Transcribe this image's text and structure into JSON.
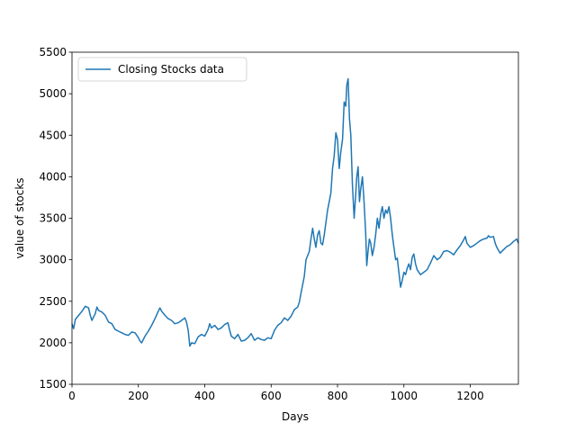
{
  "chart_data": {
    "type": "line",
    "title": "",
    "xlabel": "Days",
    "ylabel": "value of stocks",
    "xlim": [
      0,
      1345
    ],
    "ylim": [
      1500,
      5500
    ],
    "xticks": [
      0,
      200,
      400,
      600,
      800,
      1000,
      1200
    ],
    "yticks": [
      1500,
      2000,
      2500,
      3000,
      3500,
      4000,
      4500,
      5000,
      5500
    ],
    "grid": false,
    "legend_position": "top-left",
    "series": [
      {
        "name": "Closing Stocks data",
        "color": "#1f77b4",
        "points": [
          [
            0,
            2230
          ],
          [
            5,
            2170
          ],
          [
            10,
            2280
          ],
          [
            20,
            2330
          ],
          [
            30,
            2380
          ],
          [
            40,
            2440
          ],
          [
            50,
            2420
          ],
          [
            55,
            2330
          ],
          [
            60,
            2270
          ],
          [
            70,
            2350
          ],
          [
            75,
            2430
          ],
          [
            80,
            2390
          ],
          [
            90,
            2370
          ],
          [
            100,
            2330
          ],
          [
            110,
            2250
          ],
          [
            120,
            2230
          ],
          [
            130,
            2160
          ],
          [
            140,
            2140
          ],
          [
            150,
            2120
          ],
          [
            160,
            2100
          ],
          [
            170,
            2090
          ],
          [
            180,
            2130
          ],
          [
            190,
            2120
          ],
          [
            200,
            2060
          ],
          [
            205,
            2020
          ],
          [
            210,
            2000
          ],
          [
            220,
            2080
          ],
          [
            230,
            2140
          ],
          [
            240,
            2210
          ],
          [
            250,
            2290
          ],
          [
            260,
            2380
          ],
          [
            265,
            2420
          ],
          [
            270,
            2380
          ],
          [
            280,
            2330
          ],
          [
            290,
            2290
          ],
          [
            300,
            2270
          ],
          [
            310,
            2230
          ],
          [
            320,
            2240
          ],
          [
            330,
            2270
          ],
          [
            340,
            2300
          ],
          [
            345,
            2250
          ],
          [
            350,
            2150
          ],
          [
            355,
            1960
          ],
          [
            360,
            2000
          ],
          [
            370,
            1990
          ],
          [
            380,
            2070
          ],
          [
            390,
            2100
          ],
          [
            400,
            2080
          ],
          [
            410,
            2160
          ],
          [
            415,
            2230
          ],
          [
            420,
            2180
          ],
          [
            430,
            2210
          ],
          [
            440,
            2160
          ],
          [
            450,
            2180
          ],
          [
            460,
            2220
          ],
          [
            470,
            2240
          ],
          [
            475,
            2150
          ],
          [
            480,
            2080
          ],
          [
            490,
            2050
          ],
          [
            500,
            2100
          ],
          [
            510,
            2020
          ],
          [
            520,
            2030
          ],
          [
            530,
            2060
          ],
          [
            540,
            2110
          ],
          [
            550,
            2030
          ],
          [
            560,
            2060
          ],
          [
            570,
            2040
          ],
          [
            580,
            2030
          ],
          [
            590,
            2060
          ],
          [
            600,
            2050
          ],
          [
            610,
            2150
          ],
          [
            620,
            2210
          ],
          [
            630,
            2240
          ],
          [
            640,
            2300
          ],
          [
            650,
            2270
          ],
          [
            660,
            2320
          ],
          [
            670,
            2400
          ],
          [
            680,
            2430
          ],
          [
            685,
            2490
          ],
          [
            690,
            2600
          ],
          [
            700,
            2800
          ],
          [
            705,
            3000
          ],
          [
            710,
            3050
          ],
          [
            715,
            3100
          ],
          [
            720,
            3250
          ],
          [
            725,
            3380
          ],
          [
            730,
            3250
          ],
          [
            735,
            3150
          ],
          [
            740,
            3300
          ],
          [
            745,
            3350
          ],
          [
            750,
            3200
          ],
          [
            755,
            3180
          ],
          [
            760,
            3300
          ],
          [
            770,
            3600
          ],
          [
            780,
            3800
          ],
          [
            785,
            4100
          ],
          [
            790,
            4250
          ],
          [
            795,
            4530
          ],
          [
            800,
            4450
          ],
          [
            805,
            4100
          ],
          [
            810,
            4300
          ],
          [
            815,
            4450
          ],
          [
            820,
            4900
          ],
          [
            825,
            4850
          ],
          [
            828,
            5100
          ],
          [
            832,
            5180
          ],
          [
            836,
            4700
          ],
          [
            840,
            4500
          ],
          [
            845,
            3900
          ],
          [
            850,
            3500
          ],
          [
            855,
            3800
          ],
          [
            858,
            4000
          ],
          [
            862,
            4120
          ],
          [
            866,
            3700
          ],
          [
            870,
            3850
          ],
          [
            875,
            4000
          ],
          [
            880,
            3700
          ],
          [
            885,
            3300
          ],
          [
            888,
            2930
          ],
          [
            892,
            3100
          ],
          [
            896,
            3250
          ],
          [
            900,
            3200
          ],
          [
            905,
            3050
          ],
          [
            910,
            3150
          ],
          [
            915,
            3300
          ],
          [
            920,
            3500
          ],
          [
            925,
            3380
          ],
          [
            930,
            3550
          ],
          [
            935,
            3640
          ],
          [
            940,
            3500
          ],
          [
            945,
            3600
          ],
          [
            950,
            3560
          ],
          [
            955,
            3640
          ],
          [
            960,
            3500
          ],
          [
            965,
            3300
          ],
          [
            970,
            3150
          ],
          [
            975,
            3000
          ],
          [
            980,
            3020
          ],
          [
            985,
            2850
          ],
          [
            990,
            2670
          ],
          [
            995,
            2750
          ],
          [
            1000,
            2850
          ],
          [
            1005,
            2820
          ],
          [
            1010,
            2900
          ],
          [
            1015,
            2950
          ],
          [
            1020,
            2880
          ],
          [
            1025,
            3030
          ],
          [
            1030,
            3070
          ],
          [
            1035,
            2950
          ],
          [
            1040,
            2880
          ],
          [
            1050,
            2820
          ],
          [
            1060,
            2850
          ],
          [
            1070,
            2880
          ],
          [
            1080,
            2960
          ],
          [
            1090,
            3050
          ],
          [
            1100,
            3000
          ],
          [
            1110,
            3030
          ],
          [
            1120,
            3100
          ],
          [
            1130,
            3110
          ],
          [
            1140,
            3090
          ],
          [
            1150,
            3060
          ],
          [
            1160,
            3120
          ],
          [
            1170,
            3170
          ],
          [
            1180,
            3240
          ],
          [
            1185,
            3280
          ],
          [
            1190,
            3200
          ],
          [
            1200,
            3150
          ],
          [
            1210,
            3170
          ],
          [
            1220,
            3200
          ],
          [
            1230,
            3230
          ],
          [
            1240,
            3250
          ],
          [
            1250,
            3260
          ],
          [
            1255,
            3290
          ],
          [
            1260,
            3270
          ],
          [
            1270,
            3280
          ],
          [
            1275,
            3200
          ],
          [
            1280,
            3150
          ],
          [
            1290,
            3080
          ],
          [
            1300,
            3120
          ],
          [
            1310,
            3160
          ],
          [
            1320,
            3180
          ],
          [
            1330,
            3220
          ],
          [
            1340,
            3250
          ],
          [
            1345,
            3200
          ]
        ]
      }
    ]
  }
}
